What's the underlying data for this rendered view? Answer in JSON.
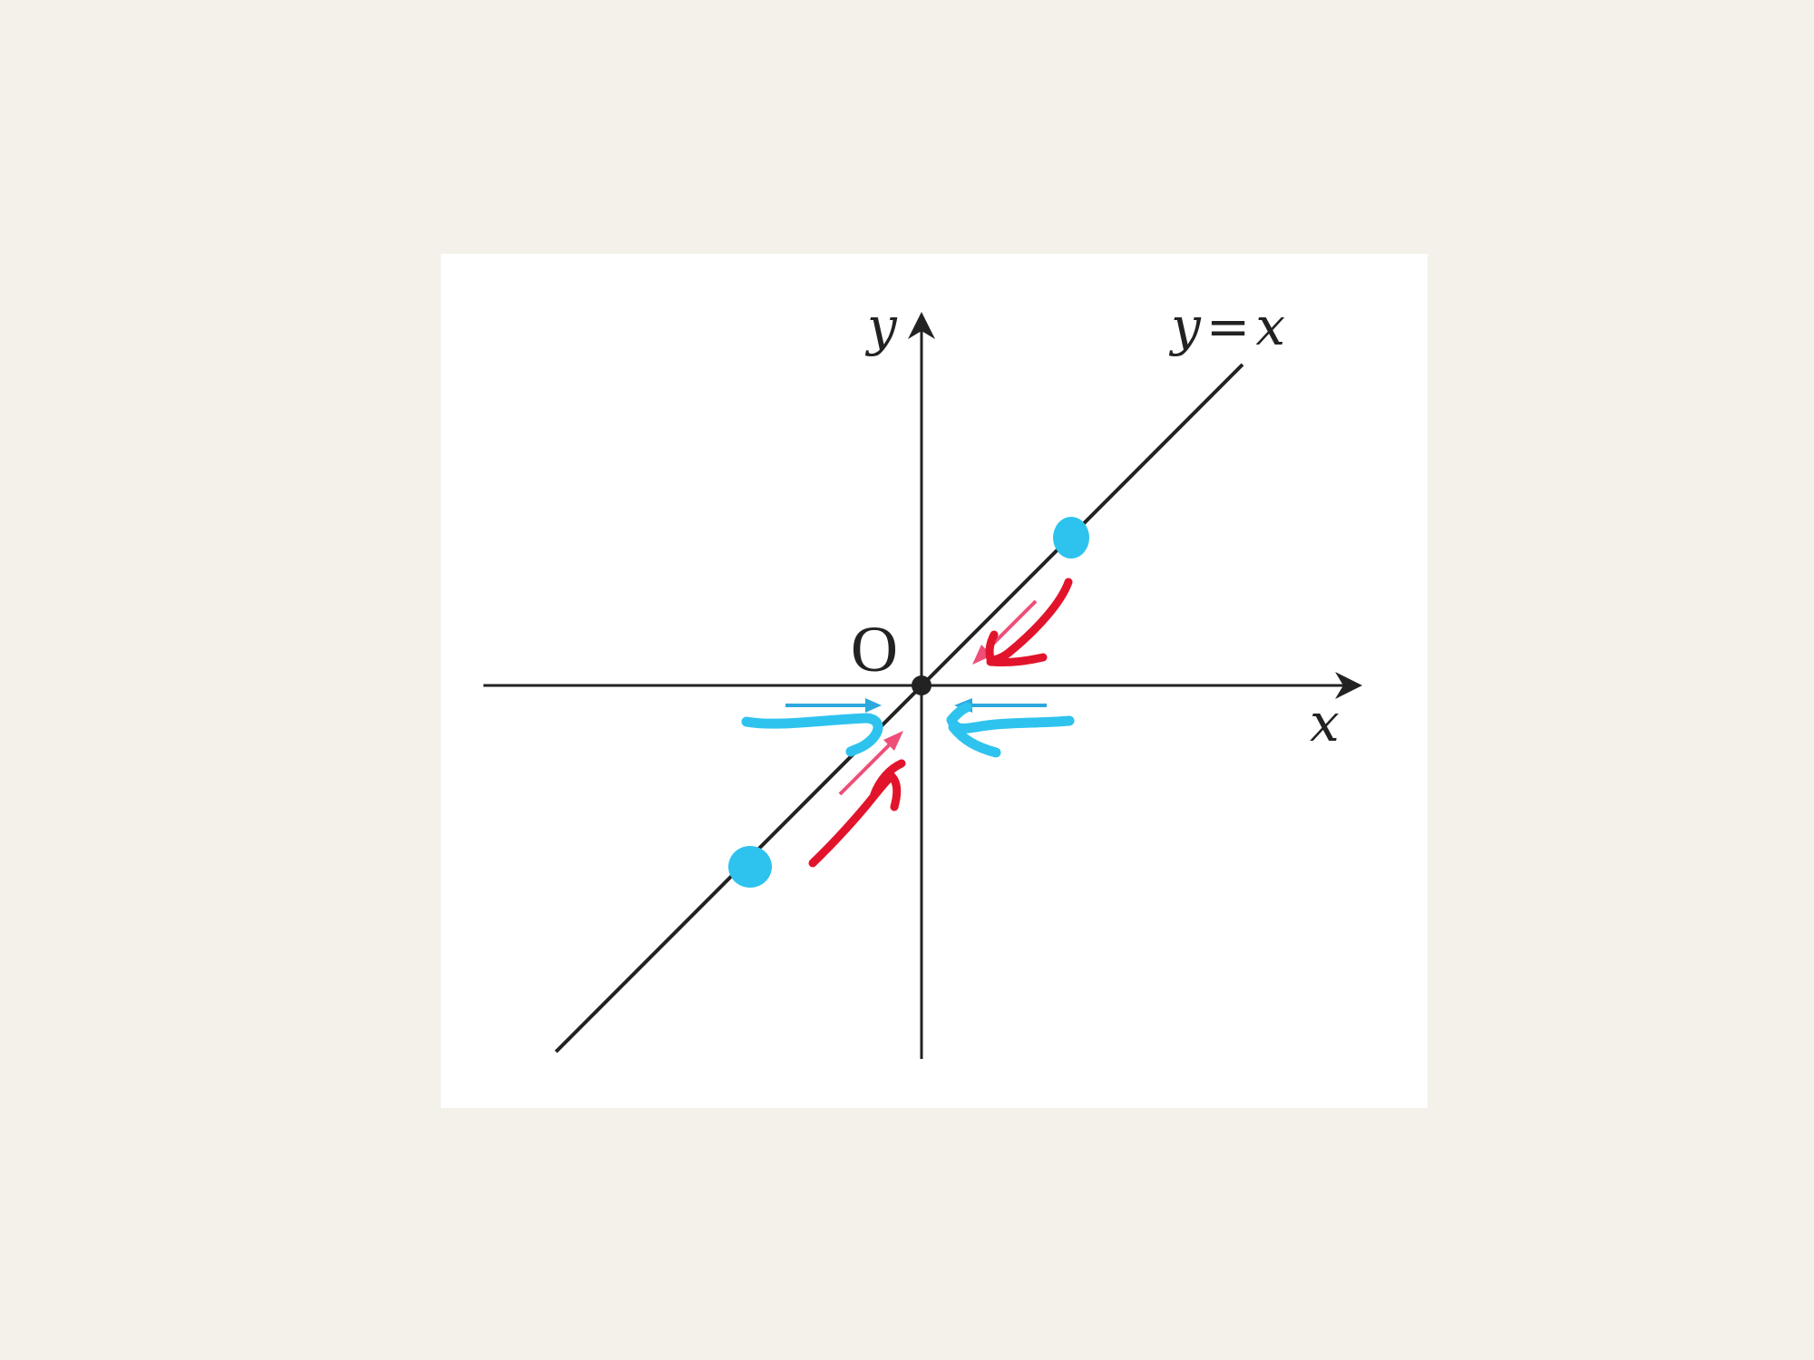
{
  "diagram": {
    "labels": {
      "y_axis": "y",
      "x_axis": "x",
      "origin": "O",
      "line": "y=x"
    },
    "colors": {
      "axes": "#222222",
      "annotation_blue": "#2ec3ee",
      "annotation_red": "#e2142b",
      "annotation_pink": "#ee4e78",
      "background": "#f3f1ea",
      "panel": "#ffffff"
    },
    "icons": {
      "points": "filled-circle",
      "arrows": "handwritten-arrow"
    }
  }
}
